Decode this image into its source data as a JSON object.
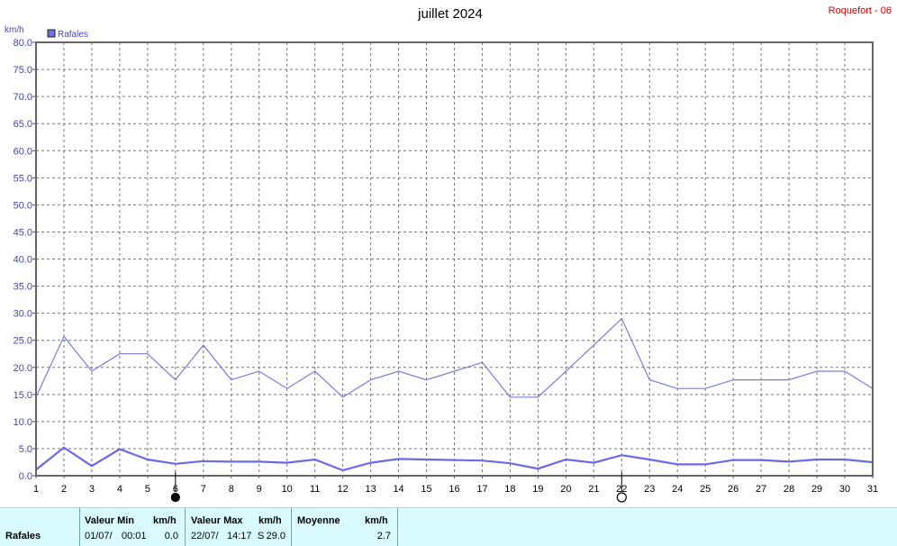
{
  "header": {
    "title": "juillet 2024",
    "station": "Roquefort - 06",
    "unit": "km/h",
    "legend_label": "Rafales"
  },
  "chart_data": {
    "type": "line",
    "title": "juillet 2024",
    "ylabel": "km/h",
    "ylim": [
      0,
      80
    ],
    "yticks": [
      "0.0",
      "5.0",
      "10.0",
      "15.0",
      "20.0",
      "25.0",
      "30.0",
      "35.0",
      "40.0",
      "45.0",
      "50.0",
      "55.0",
      "60.0",
      "65.0",
      "70.0",
      "75.0",
      "80.0"
    ],
    "x": [
      1,
      2,
      3,
      4,
      5,
      6,
      7,
      8,
      9,
      10,
      11,
      12,
      13,
      14,
      15,
      16,
      17,
      18,
      19,
      20,
      21,
      22,
      23,
      24,
      25,
      26,
      27,
      28,
      29,
      30,
      31
    ],
    "grid": true,
    "legend_position": "top-left",
    "series": [
      {
        "name": "Rafales",
        "color": "#7b7bd8",
        "values": [
          14.5,
          25.7,
          19.3,
          22.5,
          22.5,
          17.7,
          24.1,
          17.7,
          19.3,
          16.1,
          19.3,
          14.5,
          17.7,
          19.3,
          17.7,
          19.3,
          20.9,
          14.5,
          14.5,
          19.3,
          24.1,
          29.0,
          17.7,
          16.1,
          16.1,
          17.7,
          17.7,
          17.7,
          19.3,
          19.3,
          16.1
        ]
      },
      {
        "color": "#6a6ae8",
        "values": [
          1.1,
          5.2,
          1.8,
          4.9,
          3.0,
          2.2,
          2.7,
          2.6,
          2.6,
          2.4,
          3.0,
          1.0,
          2.4,
          3.1,
          3.0,
          2.9,
          2.8,
          2.3,
          1.3,
          3.0,
          2.4,
          3.8,
          3.0,
          2.1,
          2.1,
          2.9,
          2.9,
          2.6,
          3.0,
          3.0,
          2.5
        ]
      }
    ],
    "moon_markers": [
      {
        "day": 6,
        "phase": "new-moon-icon"
      },
      {
        "day": 22,
        "phase": "full-moon-icon"
      }
    ]
  },
  "stats": {
    "row_label": "Rafales",
    "min": {
      "header": "Valeur Min",
      "unit": "km/h",
      "date": "01/07/",
      "time": "00:01",
      "value": "0.0"
    },
    "max": {
      "header": "Valeur Max",
      "unit": "km/h",
      "date": "22/07/",
      "time": "14:17",
      "dir": "S",
      "value": "29.0"
    },
    "avg": {
      "header": "Moyenne",
      "unit": "km/h",
      "value": "2.7"
    }
  }
}
